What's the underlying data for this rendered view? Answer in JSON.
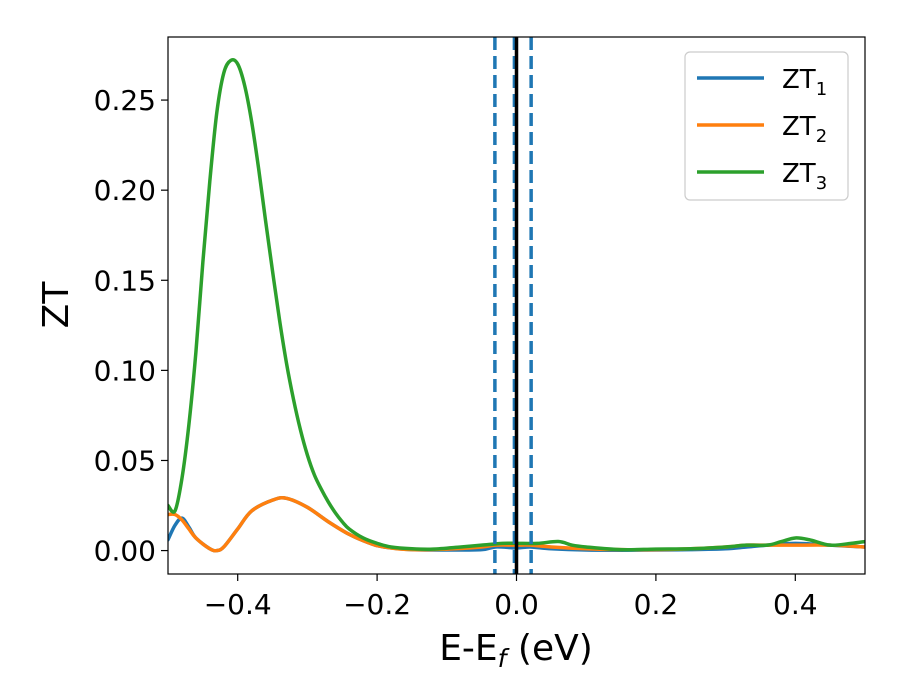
{
  "chart_data": {
    "type": "line",
    "xlabel": {
      "main": "E-E",
      "sub": "f",
      "unit": " (eV)"
    },
    "ylabel": "ZT",
    "xlim": [
      -0.5,
      0.5
    ],
    "ylim": [
      -0.013,
      0.285
    ],
    "xticks": [
      -0.4,
      -0.2,
      0.0,
      0.2,
      0.4
    ],
    "xtick_labels": [
      "−0.4",
      "−0.2",
      "0.0",
      "0.2",
      "0.4"
    ],
    "yticks": [
      0.0,
      0.05,
      0.1,
      0.15,
      0.2,
      0.25
    ],
    "ytick_labels": [
      "0.00",
      "0.05",
      "0.10",
      "0.15",
      "0.20",
      "0.25"
    ],
    "grid": false,
    "legend_position": "top-right",
    "vertical_lines": [
      {
        "x": -0.031,
        "style": "dashed",
        "color": "#1f77b4"
      },
      {
        "x": -0.003,
        "style": "dashed",
        "color": "#1f77b4"
      },
      {
        "x": 0.021,
        "style": "dashed",
        "color": "#1f77b4"
      },
      {
        "x": 0.0,
        "style": "solid",
        "color": "#000000"
      }
    ],
    "series": [
      {
        "name": "ZT",
        "sub": "1",
        "color": "#1f77b4",
        "x": [
          -0.5,
          -0.49,
          -0.48,
          -0.47,
          -0.46,
          -0.44,
          -0.43,
          -0.42,
          -0.4,
          -0.38,
          -0.35,
          -0.33,
          -0.3,
          -0.27,
          -0.24,
          -0.21,
          -0.19,
          -0.15,
          -0.1,
          -0.05,
          -0.03,
          0.0,
          0.02,
          0.05,
          0.1,
          0.15,
          0.2,
          0.25,
          0.3,
          0.33,
          0.36,
          0.4,
          0.45,
          0.5
        ],
        "y": [
          0.006,
          0.014,
          0.018,
          0.013,
          0.007,
          0.001,
          0.0,
          0.002,
          0.012,
          0.022,
          0.028,
          0.029,
          0.024,
          0.016,
          0.009,
          0.004,
          0.002,
          0.0005,
          0.0003,
          0.0005,
          0.002,
          0.0015,
          0.002,
          0.001,
          0.0003,
          0.0002,
          0.0003,
          0.0005,
          0.001,
          0.002,
          0.003,
          0.004,
          0.003,
          0.002
        ]
      },
      {
        "name": "ZT",
        "sub": "2",
        "color": "#ff7f0e",
        "x": [
          -0.5,
          -0.49,
          -0.48,
          -0.47,
          -0.46,
          -0.44,
          -0.43,
          -0.42,
          -0.4,
          -0.38,
          -0.35,
          -0.33,
          -0.3,
          -0.27,
          -0.24,
          -0.21,
          -0.19,
          -0.15,
          -0.1,
          -0.05,
          -0.03,
          0.0,
          0.02,
          0.05,
          0.1,
          0.15,
          0.2,
          0.25,
          0.3,
          0.33,
          0.36,
          0.4,
          0.45,
          0.5
        ],
        "y": [
          0.02,
          0.02,
          0.017,
          0.012,
          0.007,
          0.001,
          0.0,
          0.002,
          0.012,
          0.022,
          0.028,
          0.029,
          0.024,
          0.016,
          0.009,
          0.004,
          0.002,
          0.0005,
          0.0008,
          0.002,
          0.003,
          0.003,
          0.003,
          0.002,
          0.001,
          0.0005,
          0.0005,
          0.001,
          0.002,
          0.003,
          0.003,
          0.003,
          0.003,
          0.002
        ]
      },
      {
        "name": "ZT",
        "sub": "3",
        "color": "#2ca02c",
        "x": [
          -0.5,
          -0.49,
          -0.48,
          -0.47,
          -0.46,
          -0.45,
          -0.44,
          -0.43,
          -0.42,
          -0.41,
          -0.4,
          -0.39,
          -0.38,
          -0.37,
          -0.36,
          -0.35,
          -0.34,
          -0.33,
          -0.32,
          -0.31,
          -0.3,
          -0.29,
          -0.28,
          -0.27,
          -0.26,
          -0.25,
          -0.24,
          -0.22,
          -0.2,
          -0.18,
          -0.15,
          -0.12,
          -0.08,
          -0.05,
          -0.02,
          0.0,
          0.03,
          0.06,
          0.08,
          0.1,
          0.15,
          0.2,
          0.25,
          0.3,
          0.33,
          0.36,
          0.38,
          0.4,
          0.42,
          0.45,
          0.48,
          0.5
        ],
        "y": [
          0.025,
          0.022,
          0.04,
          0.07,
          0.11,
          0.16,
          0.205,
          0.243,
          0.265,
          0.272,
          0.27,
          0.258,
          0.238,
          0.212,
          0.183,
          0.155,
          0.128,
          0.104,
          0.084,
          0.067,
          0.053,
          0.042,
          0.034,
          0.027,
          0.021,
          0.016,
          0.012,
          0.007,
          0.004,
          0.002,
          0.001,
          0.0008,
          0.002,
          0.003,
          0.004,
          0.004,
          0.004,
          0.005,
          0.003,
          0.002,
          0.0005,
          0.0008,
          0.001,
          0.002,
          0.003,
          0.003,
          0.005,
          0.007,
          0.006,
          0.003,
          0.004,
          0.005
        ]
      }
    ]
  }
}
